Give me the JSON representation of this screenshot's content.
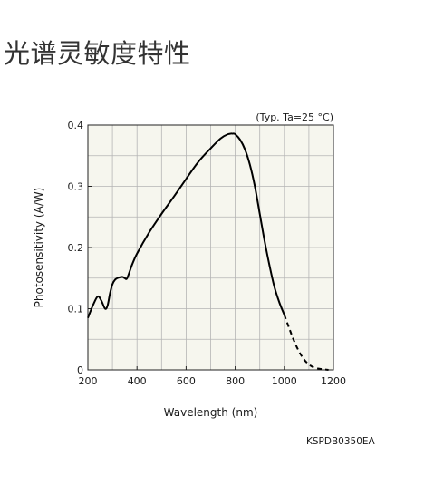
{
  "page": {
    "title": "光谱灵敏度特性",
    "document_code": "KSPDB0350EA"
  },
  "colors": {
    "plot_background": "#f6f6ee",
    "grid": "#b5b5b5",
    "curve": "#000000",
    "title_text": "#333333"
  },
  "chart_data": {
    "type": "line",
    "title": "",
    "condition": "(Typ. Ta=25 °C)",
    "xlabel": "Wavelength (nm)",
    "ylabel": "Photosensitivity (A/W)",
    "xlim": [
      200,
      1200
    ],
    "ylim": [
      0,
      0.4
    ],
    "xticks": [
      200,
      400,
      600,
      800,
      1000,
      1200
    ],
    "xtick_labels": [
      "200",
      "400",
      "600",
      "800",
      "1000",
      "1200"
    ],
    "yticks": [
      0,
      0.1,
      0.2,
      0.3,
      0.4
    ],
    "ytick_labels": [
      "0",
      "0.1",
      "0.2",
      "0.3",
      "0.4"
    ],
    "grid": true,
    "series": [
      {
        "name": "",
        "line_style": "solid",
        "x": [
          200,
          220,
          240,
          255,
          270,
          280,
          290,
          300,
          310,
          320,
          340,
          350,
          360,
          380,
          400,
          450,
          500,
          550,
          600,
          650,
          700,
          740,
          770,
          790,
          800,
          820,
          840,
          860,
          880,
          900,
          920,
          940,
          960,
          980,
          1000
        ],
        "y": [
          0.085,
          0.105,
          0.12,
          0.113,
          0.1,
          0.105,
          0.125,
          0.14,
          0.147,
          0.15,
          0.152,
          0.15,
          0.15,
          0.172,
          0.19,
          0.225,
          0.255,
          0.283,
          0.312,
          0.34,
          0.362,
          0.378,
          0.385,
          0.386,
          0.385,
          0.376,
          0.36,
          0.335,
          0.3,
          0.255,
          0.21,
          0.17,
          0.135,
          0.11,
          0.09
        ]
      },
      {
        "name": "",
        "line_style": "dashed",
        "x": [
          1000,
          1020,
          1040,
          1060,
          1080,
          1100,
          1120,
          1140,
          1160,
          1180
        ],
        "y": [
          0.09,
          0.068,
          0.047,
          0.03,
          0.017,
          0.009,
          0.004,
          0.002,
          0.001,
          0.0
        ]
      }
    ]
  }
}
